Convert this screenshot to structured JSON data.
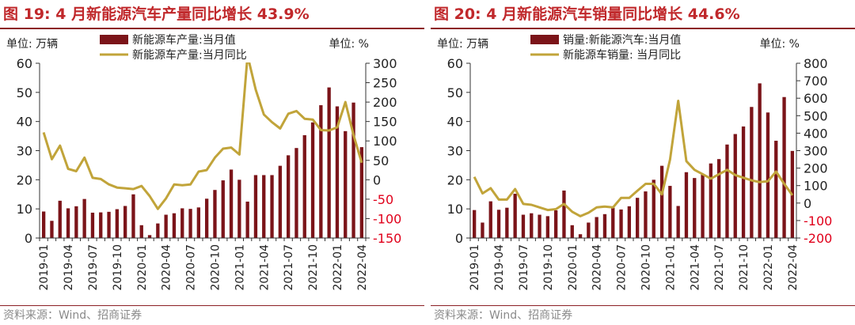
{
  "charts": [
    {
      "title": "图 19:  4 月新能源汽车产量同比增长 43.9%",
      "source": "资料来源：Wind、招商证券",
      "chart_data": {
        "type": "bar",
        "title": "图 19:  4 月新能源汽车产量同比增长 43.9%",
        "left_unit": "单位:  万辆",
        "right_unit": "单位:   %",
        "categories": [
          "2019-01",
          "2019-02",
          "2019-03",
          "2019-04",
          "2019-05",
          "2019-06",
          "2019-07",
          "2019-08",
          "2019-09",
          "2019-10",
          "2019-11",
          "2019-12",
          "2020-01",
          "2020-02",
          "2020-03",
          "2020-04",
          "2020-05",
          "2020-06",
          "2020-07",
          "2020-08",
          "2020-09",
          "2020-10",
          "2020-11",
          "2020-12",
          "2021-01",
          "2021-02",
          "2021-03",
          "2021-04",
          "2021-05",
          "2021-06",
          "2021-07",
          "2021-08",
          "2021-09",
          "2021-10",
          "2021-11",
          "2021-12",
          "2022-01",
          "2022-02",
          "2022-03",
          "2022-04"
        ],
        "x_ticks": [
          "2019-01",
          "2019-04",
          "2019-07",
          "2019-10",
          "2020-01",
          "2020-04",
          "2020-07",
          "2020-10",
          "2021-01",
          "2021-04",
          "2021-07",
          "2021-10",
          "2022-01",
          "2022-04"
        ],
        "left_axis": {
          "min": 0,
          "max": 60,
          "ticks": [
            0,
            10,
            20,
            30,
            40,
            50,
            60
          ]
        },
        "right_axis": {
          "min": -150,
          "max": 300,
          "ticks": [
            -150,
            -100,
            -50,
            0,
            50,
            100,
            150,
            200,
            250,
            300
          ]
        },
        "series": [
          {
            "name": "新能源车产量:当月值",
            "type": "bar",
            "axis": "left",
            "color": "#7b1419",
            "values": [
              9.1,
              5.9,
              12.8,
              10.2,
              10.9,
              13.4,
              8.7,
              8.8,
              9.0,
              9.9,
              11.0,
              15.0,
              4.4,
              1.0,
              5.0,
              8.0,
              8.5,
              10.2,
              10.0,
              10.5,
              13.5,
              16.5,
              19.8,
              23.5,
              20.0,
              12.5,
              21.6,
              21.6,
              21.6,
              24.8,
              28.4,
              30.9,
              35.3,
              39.7,
              45.6,
              51.7,
              45.2,
              36.7,
              46.5,
              31.2
            ]
          },
          {
            "name": "新能源车产量:当月同比",
            "type": "line",
            "axis": "right",
            "color": "#c1a43a",
            "values": [
              122,
              53,
              88,
              28,
              22,
              57,
              5,
              2,
              -12,
              -20,
              -22,
              -24,
              -16,
              -42,
              -75,
              -48,
              -12,
              -14,
              -12,
              21,
              25,
              57,
              80,
              83,
              65,
              320,
              232,
              168,
              148,
              132,
              170,
              177,
              157,
              155,
              128,
              127,
              135,
              200,
              115,
              43.9
            ]
          }
        ]
      }
    },
    {
      "title": "图 20:  4 月新能源汽车销量同比增长 44.6%",
      "source": "资料来源：Wind、招商证券",
      "chart_data": {
        "type": "bar",
        "title": "图 20:  4 月新能源汽车销量同比增长 44.6%",
        "left_unit": "单位:  万辆",
        "right_unit": "单位:   %",
        "categories": [
          "2019-01",
          "2019-02",
          "2019-03",
          "2019-04",
          "2019-05",
          "2019-06",
          "2019-07",
          "2019-08",
          "2019-09",
          "2019-10",
          "2019-11",
          "2019-12",
          "2020-01",
          "2020-02",
          "2020-03",
          "2020-04",
          "2020-05",
          "2020-06",
          "2020-07",
          "2020-08",
          "2020-09",
          "2020-10",
          "2020-11",
          "2020-12",
          "2021-01",
          "2021-02",
          "2021-03",
          "2021-04",
          "2021-05",
          "2021-06",
          "2021-07",
          "2021-08",
          "2021-09",
          "2021-10",
          "2021-11",
          "2021-12",
          "2022-01",
          "2022-02",
          "2022-03",
          "2022-04"
        ],
        "x_ticks": [
          "2019-01",
          "2019-04",
          "2019-07",
          "2019-10",
          "2020-01",
          "2020-04",
          "2020-07",
          "2020-10",
          "2021-01",
          "2021-04",
          "2021-07",
          "2021-10",
          "2022-01",
          "2022-04"
        ],
        "left_axis": {
          "min": 0,
          "max": 60,
          "ticks": [
            0,
            10,
            20,
            30,
            40,
            50,
            60
          ]
        },
        "right_axis": {
          "min": -200,
          "max": 800,
          "ticks": [
            -200,
            -100,
            0,
            100,
            200,
            300,
            400,
            500,
            600,
            700,
            800
          ]
        },
        "series": [
          {
            "name": "销量:新能源汽车:当月值",
            "type": "bar",
            "axis": "left",
            "color": "#7b1419",
            "values": [
              9.6,
              5.3,
              12.6,
              9.7,
              10.4,
              15.2,
              8.0,
              8.5,
              8.0,
              7.5,
              9.5,
              16.3,
              4.4,
              1.3,
              5.3,
              7.2,
              8.2,
              10.4,
              9.8,
              10.9,
              13.8,
              16.0,
              20.0,
              24.8,
              17.9,
              11.0,
              22.6,
              20.6,
              21.7,
              25.6,
              27.1,
              32.1,
              35.7,
              38.3,
              45.0,
              53.1,
              43.1,
              33.4,
              48.4,
              29.9
            ]
          },
          {
            "name": "新能源车销量:  当月同比",
            "type": "line",
            "axis": "right",
            "color": "#c1a43a",
            "values": [
              150,
              55,
              85,
              20,
              20,
              80,
              -5,
              -10,
              -25,
              -40,
              -35,
              -5,
              -50,
              -75,
              -55,
              -25,
              -20,
              -25,
              30,
              30,
              70,
              110,
              110,
              50,
              250,
              585,
              240,
              190,
              165,
              140,
              165,
              190,
              160,
              145,
              130,
              120,
              125,
              180,
              110,
              44.6
            ]
          }
        ]
      }
    }
  ]
}
